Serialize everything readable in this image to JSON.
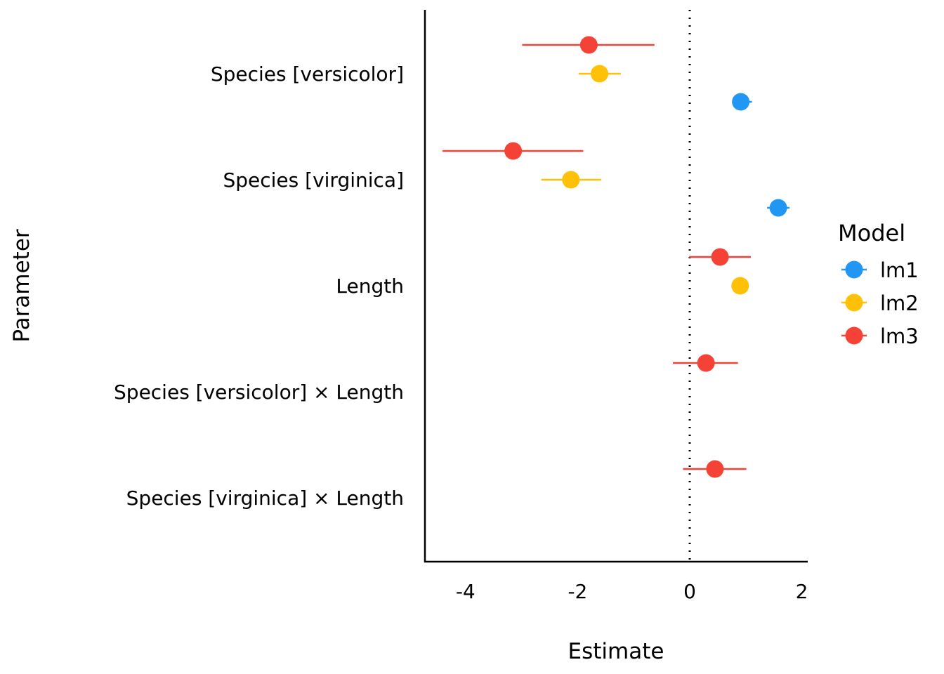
{
  "chart_data": {
    "type": "scatter",
    "subtype": "coefficient-plot",
    "title": "",
    "xlabel": "Estimate",
    "ylabel": "Parameter",
    "xlim": [
      -4.7,
      2.1
    ],
    "xticks": [
      -4,
      -2,
      0,
      2
    ],
    "xtick_labels": [
      "-4",
      "-2",
      "0",
      "2"
    ],
    "reference_line": {
      "x": 0,
      "style": "dotted"
    },
    "grid": false,
    "categories": [
      "Species [versicolor]",
      "Species [virginica]",
      "Length",
      "Species [versicolor] × Length",
      "Species [virginica] × Length"
    ],
    "legend": {
      "title": "Model",
      "position": "right"
    },
    "series": [
      {
        "name": "lm1",
        "color": "#2196F3",
        "points": [
          {
            "parameter": "Species [versicolor]",
            "estimate": 0.91,
            "ci_low": 0.76,
            "ci_high": 1.11
          },
          {
            "parameter": "Species [virginica]",
            "estimate": 1.58,
            "ci_low": 1.38,
            "ci_high": 1.78
          }
        ]
      },
      {
        "name": "lm2",
        "color": "#FFC107",
        "points": [
          {
            "parameter": "Species [versicolor]",
            "estimate": -1.61,
            "ci_low": -1.98,
            "ci_high": -1.23
          },
          {
            "parameter": "Species [virginica]",
            "estimate": -2.12,
            "ci_low": -2.65,
            "ci_high": -1.58
          },
          {
            "parameter": "Length",
            "estimate": 0.9,
            "ci_low": 0.8,
            "ci_high": 1.0
          }
        ]
      },
      {
        "name": "lm3",
        "color": "#F44336",
        "points": [
          {
            "parameter": "Species [versicolor]",
            "estimate": -1.8,
            "ci_low": -2.99,
            "ci_high": -0.63
          },
          {
            "parameter": "Species [virginica]",
            "estimate": -3.15,
            "ci_low": -4.41,
            "ci_high": -1.9
          },
          {
            "parameter": "Length",
            "estimate": 0.54,
            "ci_low": -0.01,
            "ci_high": 1.09
          },
          {
            "parameter": "Species [versicolor] × Length",
            "estimate": 0.29,
            "ci_low": -0.3,
            "ci_high": 0.86
          },
          {
            "parameter": "Species [virginica] × Length",
            "estimate": 0.45,
            "ci_low": -0.12,
            "ci_high": 1.01
          }
        ]
      }
    ]
  }
}
